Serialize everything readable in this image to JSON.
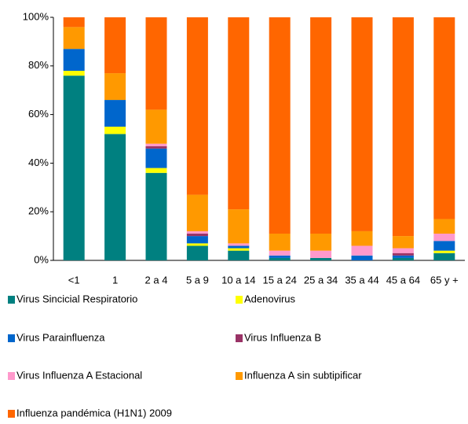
{
  "chart_data": {
    "type": "stacked-bar",
    "categories": [
      "<1",
      "1",
      "2 a 4",
      "5 a 9",
      "10 a 14",
      "15 a 24",
      "25 a 34",
      "35 a 44",
      "45 a 64",
      "65 y +"
    ],
    "series": [
      {
        "name": "Virus Sincicial Respiratorio",
        "color": "#008080",
        "values": [
          76,
          52,
          36,
          6,
          4,
          1,
          1,
          0,
          1,
          3
        ]
      },
      {
        "name": "Adenovirus",
        "color": "#ffff00",
        "values": [
          2,
          3,
          2,
          1,
          1,
          0,
          0,
          0,
          0,
          1
        ]
      },
      {
        "name": "Virus Parainfluenza",
        "color": "#0066cc",
        "values": [
          9,
          11,
          8,
          3,
          1,
          1,
          0,
          2,
          1,
          4
        ]
      },
      {
        "name": "Virus Influenza B",
        "color": "#993366",
        "values": [
          0,
          0,
          1,
          1,
          0,
          0,
          0,
          0,
          1,
          0
        ]
      },
      {
        "name": "Virus Influenza A Estacional",
        "color": "#ff99cc",
        "values": [
          0,
          0,
          1,
          1,
          1,
          2,
          3,
          4,
          2,
          3
        ]
      },
      {
        "name": "Influenza A sin subtipificar",
        "color": "#ff9900",
        "values": [
          9,
          11,
          14,
          15,
          14,
          7,
          7,
          6,
          5,
          6
        ]
      },
      {
        "name": "Influenza pandémica (H1N1) 2009",
        "color": "#ff6600",
        "values": [
          4,
          23,
          38,
          73,
          79,
          89,
          89,
          88,
          90,
          83
        ]
      }
    ],
    "ylim": [
      0,
      100
    ],
    "yticks": [
      {
        "value": 0,
        "label": "0%"
      },
      {
        "value": 20,
        "label": "20%"
      },
      {
        "value": 40,
        "label": "40%"
      },
      {
        "value": 60,
        "label": "60%"
      },
      {
        "value": 80,
        "label": "80%"
      },
      {
        "value": 100,
        "label": "100%"
      }
    ]
  }
}
